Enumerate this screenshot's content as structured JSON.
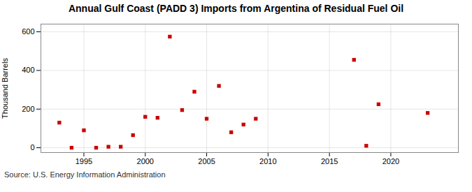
{
  "chart_data": {
    "type": "scatter",
    "title": "Annual Gulf Coast (PADD 3) Imports from Argentina of Residual Fuel Oil",
    "ylabel": "Thousand Barrels",
    "annotations": [
      "Source: U.S. Energy Information Administration"
    ],
    "x": [
      1993,
      1994,
      1995,
      1996,
      1997,
      1998,
      1999,
      2000,
      2001,
      2002,
      2003,
      2004,
      2005,
      2006,
      2007,
      2008,
      2009,
      2017,
      2018,
      2019,
      2023
    ],
    "values": [
      130,
      0,
      90,
      0,
      5,
      5,
      65,
      160,
      155,
      575,
      195,
      290,
      150,
      320,
      80,
      120,
      150,
      455,
      10,
      225,
      180
    ],
    "color": "#cc0000",
    "marker": "square",
    "xlim": [
      1991.5,
      2025.5
    ],
    "xticks": [
      1995,
      2000,
      2005,
      2010,
      2015,
      2020
    ],
    "ylim": [
      -25,
      640
    ],
    "yticks": [
      0,
      200,
      400,
      600
    ],
    "grid": true
  }
}
